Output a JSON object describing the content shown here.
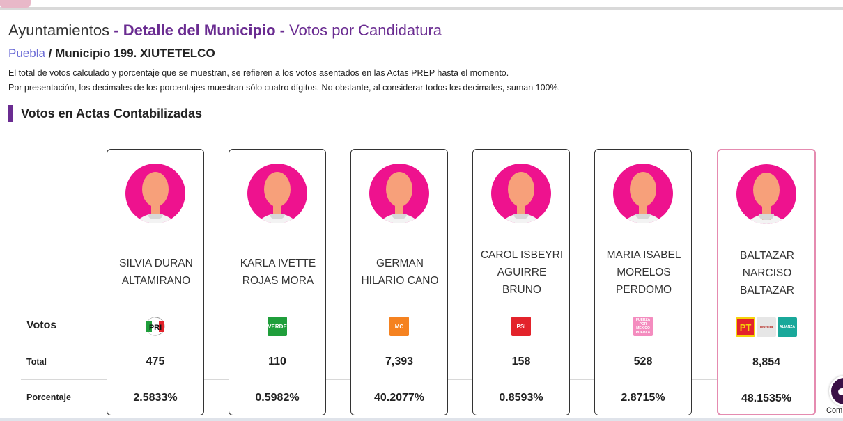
{
  "header": {
    "section": "Ayuntamientos",
    "sep1": "-",
    "detail": "Detalle del Municipio",
    "sep2": "-",
    "view": "Votos por Candidatura"
  },
  "breadcrumb": {
    "state_link": "Puebla",
    "separator": "/",
    "municipality": "Municipio 199. XIUTETELCO"
  },
  "notes": {
    "line1": "El total de votos calculado y porcentaje que se muestran, se refieren a los votos asentados en las Actas PREP hasta el momento.",
    "line2": "Por presentación, los decimales de los porcentajes muestran sólo cuatro dígitos. No obstante, al considerar todos los decimales, suman 100%."
  },
  "section": {
    "title": "Votos en Actas Contabilizadas"
  },
  "row_labels": {
    "votos": "Votos",
    "total": "Total",
    "porcentaje": "Porcentaje"
  },
  "candidates": [
    {
      "name_lines": [
        "SILVIA DURAN",
        "ALTAMIRANO"
      ],
      "parties": [
        "pri-logo"
      ],
      "total": "475",
      "percent": "2.5833%"
    },
    {
      "name_lines": [
        "KARLA IVETTE",
        "ROJAS MORA"
      ],
      "parties": [
        "verde-logo"
      ],
      "total": "110",
      "percent": "0.5982%"
    },
    {
      "name_lines": [
        "GERMAN",
        "HILARIO CANO"
      ],
      "parties": [
        "movimiento-ciudadano-logo"
      ],
      "total": "7,393",
      "percent": "40.2077%"
    },
    {
      "name_lines": [
        "CAROL ISBEYRI",
        "AGUIRRE",
        "BRUNO"
      ],
      "parties": [
        "psi-logo"
      ],
      "total": "158",
      "percent": "0.8593%"
    },
    {
      "name_lines": [
        "MARIA ISABEL",
        "MORELOS",
        "PERDOMO"
      ],
      "parties": [
        "fuerza-por-mexico-puebla-logo"
      ],
      "total": "528",
      "percent": "2.8715%"
    },
    {
      "name_lines": [
        "BALTAZAR",
        "NARCISO",
        "BALTAZAR"
      ],
      "parties": [
        "pt-logo",
        "morena-logo",
        "nueva-alianza-logo"
      ],
      "total": "8,854",
      "percent": "48.1535%"
    }
  ],
  "logo_text": {
    "verde": "VERDE",
    "mc": "MC",
    "psi": "PSI",
    "pmp": "FUERZA POR MÉXICO PUEBLA",
    "pt": "PT",
    "morena": "morena",
    "nueva": "ALIANZA"
  },
  "chat": {
    "label": "Com"
  },
  "colors": {
    "accent": "#6a2c91",
    "avatar": "#ee128e",
    "winner_border": "#e58bb0"
  }
}
